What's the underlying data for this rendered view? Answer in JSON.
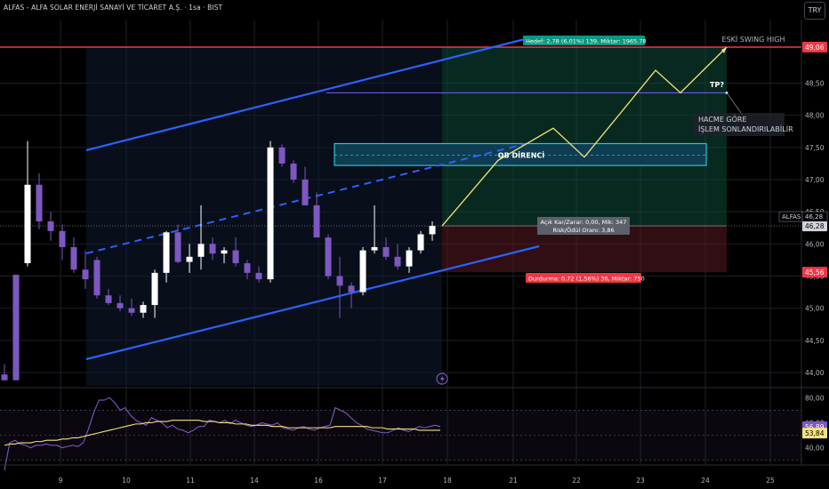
{
  "header": {
    "title": "ALFAS - ALFA SOLAR ENERJİ SANAYİ VE TİCARET A.Ş. · 1sa · BIST",
    "currency": "TRY"
  },
  "chart_data": {
    "type": "candlestick",
    "symbol": "ALFAS",
    "ylim": [
      43.85,
      49.55
    ],
    "y_ticks": [
      "49,06",
      "48,50",
      "48,00",
      "47,50",
      "47,00",
      "46,50",
      "46,00",
      "45,50",
      "45,00",
      "44,50",
      "44,00"
    ],
    "x_ticks": [
      "9",
      "10",
      "11",
      "14",
      "16",
      "17",
      "18",
      "21",
      "22",
      "23",
      "24",
      "25"
    ],
    "price_labels": {
      "resistance": {
        "text": "49,06",
        "color": "#f23645"
      },
      "symbol_tag": "ALFAS",
      "symbol_value": "46,28",
      "last": {
        "text": "46,28"
      },
      "stop": {
        "text": "45,56",
        "color": "#f23645"
      }
    },
    "candles": [
      [
        43.97,
        44.13,
        43.88,
        43.88
      ],
      [
        45.52,
        45.52,
        43.88,
        43.88
      ],
      [
        45.7,
        47.6,
        45.65,
        46.92
      ],
      [
        46.92,
        47.1,
        46.23,
        46.35
      ],
      [
        46.35,
        46.5,
        46.05,
        46.2
      ],
      [
        46.2,
        46.3,
        45.75,
        45.95
      ],
      [
        45.95,
        46.1,
        45.55,
        45.6
      ],
      [
        45.6,
        45.9,
        45.3,
        45.45
      ],
      [
        45.75,
        45.8,
        45.15,
        45.2
      ],
      [
        45.2,
        45.3,
        45.05,
        45.08
      ],
      [
        45.08,
        45.2,
        44.95,
        45.0
      ],
      [
        45.0,
        45.15,
        44.88,
        44.93
      ],
      [
        44.93,
        45.1,
        44.85,
        45.05
      ],
      [
        45.05,
        45.6,
        44.85,
        45.55
      ],
      [
        45.55,
        46.2,
        45.4,
        46.18
      ],
      [
        46.18,
        46.3,
        45.7,
        45.72
      ],
      [
        45.72,
        46.0,
        45.55,
        45.8
      ],
      [
        45.8,
        46.6,
        45.6,
        46.0
      ],
      [
        46.0,
        46.1,
        45.75,
        45.85
      ],
      [
        45.85,
        45.95,
        45.7,
        45.9
      ],
      [
        45.9,
        46.1,
        45.65,
        45.7
      ],
      [
        45.7,
        45.75,
        45.45,
        45.55
      ],
      [
        45.55,
        45.65,
        45.4,
        45.45
      ],
      [
        45.45,
        47.6,
        45.4,
        47.5
      ],
      [
        47.5,
        47.55,
        47.2,
        47.25
      ],
      [
        47.25,
        47.3,
        46.95,
        47.0
      ],
      [
        47.0,
        47.2,
        46.6,
        46.6
      ],
      [
        46.6,
        46.8,
        46.1,
        46.1
      ],
      [
        46.1,
        46.15,
        45.45,
        45.5
      ],
      [
        45.5,
        45.8,
        44.85,
        45.35
      ],
      [
        45.35,
        45.4,
        45.0,
        45.25
      ],
      [
        45.25,
        45.95,
        45.2,
        45.9
      ],
      [
        45.9,
        46.6,
        45.85,
        45.95
      ],
      [
        45.95,
        46.1,
        45.75,
        45.8
      ],
      [
        45.8,
        46.0,
        45.6,
        45.65
      ],
      [
        45.65,
        45.95,
        45.55,
        45.9
      ],
      [
        45.9,
        46.2,
        45.85,
        46.15
      ],
      [
        46.15,
        46.35,
        46.05,
        46.28
      ]
    ],
    "channel": {
      "color": "#2962ff"
    },
    "ob_label": "OB DİRENCİ",
    "eski_swing_label": "ESKİ SWING HIGH",
    "tp_label": "TP?",
    "hacme_label_line1": "HACME GÖRE",
    "hacme_label_line2": "İŞLEM SONLANDIRILABİLİR",
    "target_label": "Hedef: 2,78 (6,01%) 139, Miktar: 1965.78",
    "info_line1": "Açık Kar/Zarar: 0,00, Mik: 347",
    "info_line2": "Risk/Ödül Oranı: 3,86",
    "stop_label": "Durdurma: 0,72 (1,56%) 36, Miktar: 750",
    "projection": [
      46.28,
      47.3,
      47.8,
      47.35,
      48.7,
      48.35,
      49.06
    ],
    "rsi": {
      "ticks": [
        "80,00",
        "60,00",
        "40,00"
      ],
      "value": "56,89",
      "ma": "53,84",
      "value_color": "#7e57c2",
      "ma_color": "#f7e37a",
      "rsi_values": [
        22,
        44,
        46,
        43,
        42,
        40,
        42,
        42,
        43,
        42,
        42,
        40,
        41,
        42,
        41,
        44,
        55,
        68,
        78,
        78,
        80,
        76,
        70,
        72,
        66,
        62,
        60,
        58,
        64,
        62,
        60,
        56,
        58,
        55,
        54,
        52,
        54,
        57,
        57,
        62,
        61,
        60,
        62,
        59,
        62,
        60,
        58,
        57,
        58,
        60,
        59,
        58,
        60,
        56,
        55,
        54,
        56,
        57,
        55,
        54,
        56,
        57,
        58,
        72,
        70,
        68,
        64,
        60,
        58,
        55,
        54,
        53,
        52,
        52,
        54,
        56,
        54,
        53,
        55,
        57,
        56,
        57,
        58,
        57
      ],
      "ma_values": [
        42,
        43,
        43,
        44,
        44,
        44,
        45,
        45,
        46,
        46,
        46,
        47,
        47,
        48,
        48,
        49,
        50,
        51,
        52,
        53,
        54,
        55,
        56,
        57,
        58,
        59,
        59,
        60,
        60,
        61,
        61,
        61,
        62,
        62,
        62,
        62,
        62,
        62,
        61,
        61,
        61,
        60,
        60,
        60,
        59,
        59,
        59,
        58,
        58,
        58,
        58,
        57,
        57,
        57,
        56,
        56,
        56,
        56,
        56,
        56,
        56,
        56,
        56,
        57,
        57,
        57,
        57,
        57,
        57,
        57,
        56,
        56,
        56,
        55,
        55,
        55,
        55,
        55,
        55,
        54,
        54,
        54,
        54,
        54
      ]
    }
  }
}
